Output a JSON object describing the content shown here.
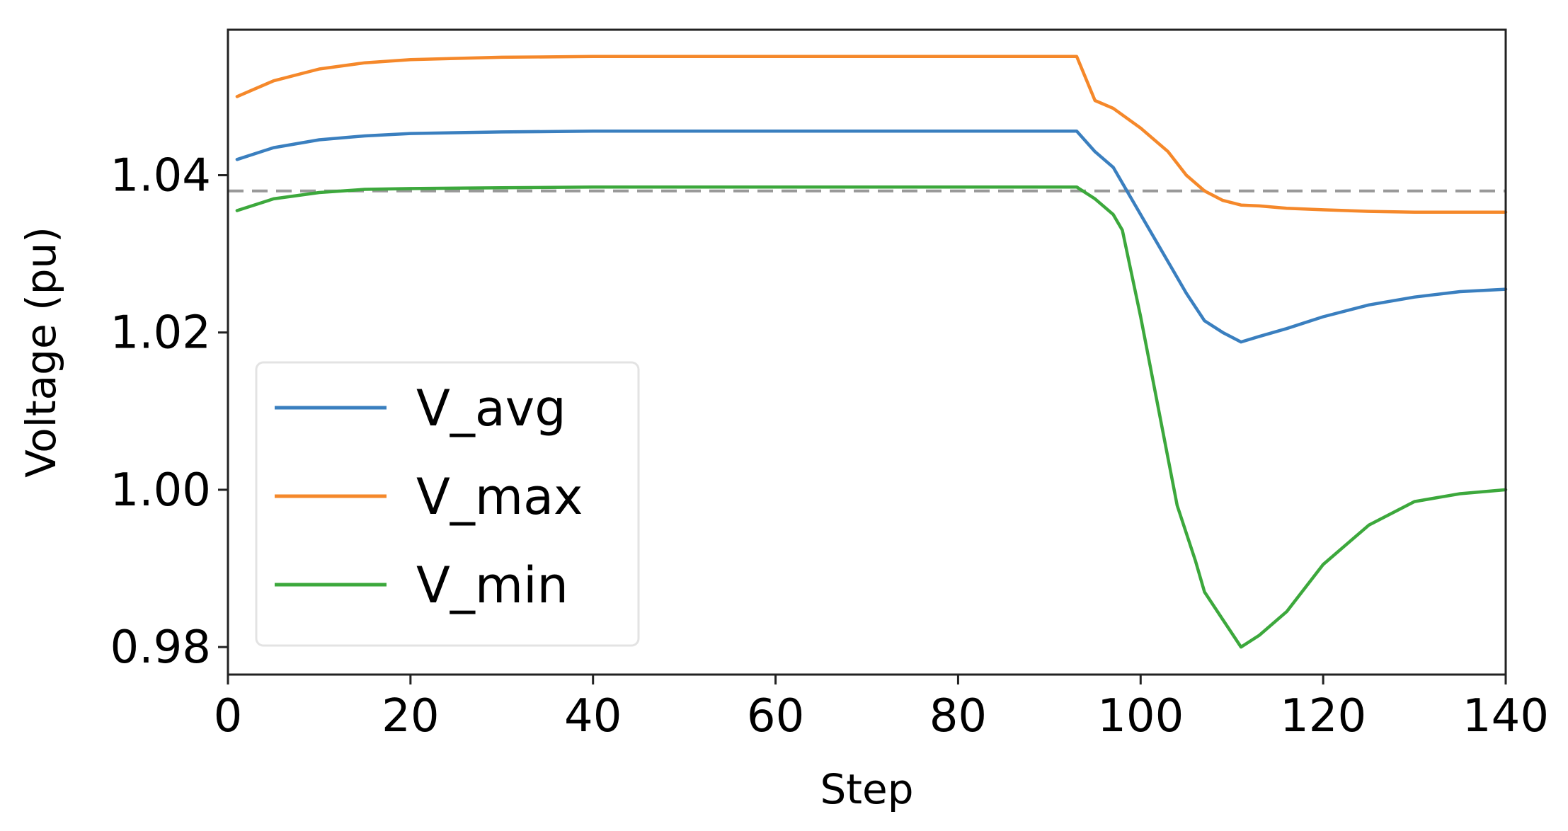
{
  "chart_data": {
    "type": "line",
    "title": "",
    "xlabel": "Step",
    "ylabel": "Voltage (pu)",
    "xlim": [
      0,
      140
    ],
    "ylim": [
      0.9765,
      1.0585
    ],
    "xticks": [
      0,
      20,
      40,
      60,
      80,
      100,
      120,
      140
    ],
    "xtick_labels": [
      "0",
      "20",
      "40",
      "60",
      "80",
      "100",
      "120",
      "140"
    ],
    "yticks": [
      0.98,
      1.0,
      1.02,
      1.04
    ],
    "ytick_labels": [
      "0.98",
      "1.00",
      "1.02",
      "1.04"
    ],
    "grid": false,
    "legend_position": "lower-left",
    "reference_line": {
      "y": 1.038,
      "style": "dashed",
      "color": "#999999"
    },
    "series": [
      {
        "name": "V_avg",
        "color": "#3a7fbf",
        "x": [
          1,
          5,
          10,
          15,
          20,
          30,
          40,
          60,
          80,
          93,
          95,
          97,
          100,
          103,
          105,
          107,
          109,
          111,
          113,
          116,
          120,
          125,
          130,
          135,
          140
        ],
        "y": [
          1.042,
          1.0435,
          1.0445,
          1.045,
          1.0453,
          1.0455,
          1.0456,
          1.0456,
          1.0456,
          1.0456,
          1.043,
          1.041,
          1.035,
          1.029,
          1.025,
          1.0215,
          1.02,
          1.0188,
          1.0195,
          1.0205,
          1.022,
          1.0235,
          1.0245,
          1.0252,
          1.0255
        ]
      },
      {
        "name": "V_max",
        "color": "#f5882a",
        "x": [
          1,
          5,
          10,
          15,
          20,
          30,
          40,
          60,
          80,
          93,
          95,
          97,
          100,
          103,
          105,
          107,
          109,
          111,
          113,
          116,
          120,
          125,
          130,
          135,
          140
        ],
        "y": [
          1.05,
          1.052,
          1.0535,
          1.0543,
          1.0547,
          1.055,
          1.0551,
          1.0551,
          1.0551,
          1.0551,
          1.0495,
          1.0485,
          1.046,
          1.043,
          1.04,
          1.038,
          1.0368,
          1.0362,
          1.0361,
          1.0358,
          1.0356,
          1.0354,
          1.0353,
          1.0353,
          1.0353
        ]
      },
      {
        "name": "V_min",
        "color": "#3ca83c",
        "x": [
          1,
          5,
          10,
          15,
          20,
          30,
          40,
          60,
          80,
          93,
          95,
          97,
          98,
          100,
          102,
          104,
          106,
          107,
          109,
          111,
          113,
          116,
          120,
          125,
          130,
          135,
          140
        ],
        "y": [
          1.0355,
          1.037,
          1.0378,
          1.0382,
          1.0383,
          1.0384,
          1.0385,
          1.0385,
          1.0385,
          1.0385,
          1.037,
          1.035,
          1.033,
          1.022,
          1.01,
          0.998,
          0.991,
          0.987,
          0.9835,
          0.98,
          0.9815,
          0.9845,
          0.9905,
          0.9955,
          0.9985,
          0.9995,
          1.0
        ]
      }
    ]
  }
}
